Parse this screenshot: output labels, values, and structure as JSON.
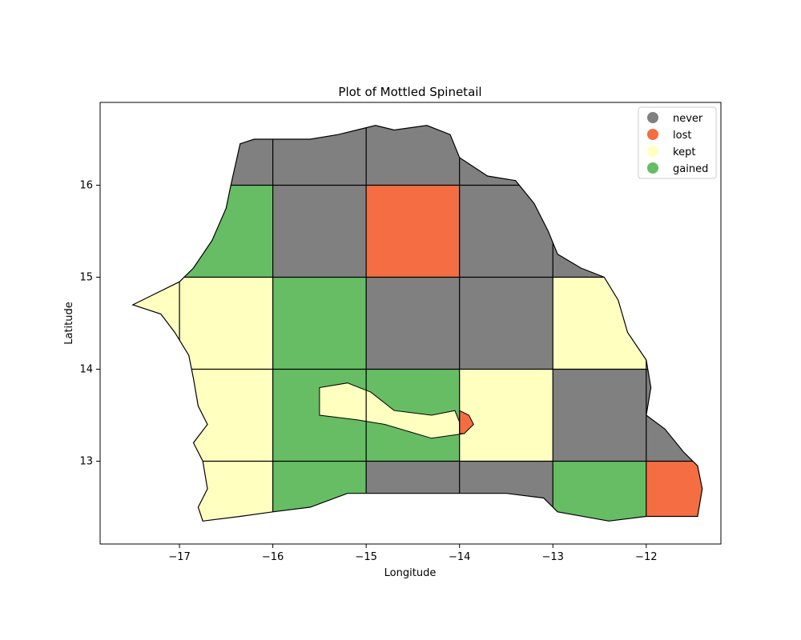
{
  "title": "Plot of Mottled Spinetail",
  "xlabel": "Longitude",
  "ylabel": "Latitude",
  "chart_data": {
    "type": "map",
    "xlim": [
      -17.85,
      -11.2
    ],
    "ylim": [
      12.1,
      16.9
    ],
    "x_ticks": [
      -17,
      -16,
      -15,
      -14,
      -13,
      -12
    ],
    "x_tick_labels": [
      "−17",
      "−16",
      "−15",
      "−14",
      "−13",
      "−12"
    ],
    "y_ticks": [
      13,
      14,
      15,
      16
    ],
    "y_tick_labels": [
      "13",
      "14",
      "15",
      "16"
    ],
    "legend_position": "top-right",
    "categories": [
      {
        "key": "never",
        "label": "never",
        "color": "#808080"
      },
      {
        "key": "lost",
        "label": "lost",
        "color": "#f46d43"
      },
      {
        "key": "kept",
        "label": "kept",
        "color": "#ffffbf"
      },
      {
        "key": "gained",
        "label": "gained",
        "color": "#66bd63"
      }
    ],
    "cells": [
      {
        "lon": -16.5,
        "lat": 16.5,
        "status": "never"
      },
      {
        "lon": -15.5,
        "lat": 16.5,
        "status": "never"
      },
      {
        "lon": -14.5,
        "lat": 16.5,
        "status": "never"
      },
      {
        "lon": -13.5,
        "lat": 16.5,
        "status": "never"
      },
      {
        "lon": -16.5,
        "lat": 15.5,
        "status": "gained"
      },
      {
        "lon": -15.5,
        "lat": 15.5,
        "status": "never"
      },
      {
        "lon": -14.5,
        "lat": 15.5,
        "status": "lost"
      },
      {
        "lon": -13.5,
        "lat": 15.5,
        "status": "never"
      },
      {
        "lon": -12.5,
        "lat": 15.5,
        "status": "never"
      },
      {
        "lon": -17.5,
        "lat": 14.5,
        "status": "kept"
      },
      {
        "lon": -16.5,
        "lat": 14.5,
        "status": "kept"
      },
      {
        "lon": -15.5,
        "lat": 14.5,
        "status": "gained"
      },
      {
        "lon": -14.5,
        "lat": 14.5,
        "status": "never"
      },
      {
        "lon": -13.5,
        "lat": 14.5,
        "status": "never"
      },
      {
        "lon": -12.5,
        "lat": 14.5,
        "status": "kept"
      },
      {
        "lon": -16.5,
        "lat": 13.5,
        "status": "kept"
      },
      {
        "lon": -15.5,
        "lat": 13.5,
        "status": "gained"
      },
      {
        "lon": -14.5,
        "lat": 13.5,
        "status": "gained"
      },
      {
        "lon": -13.5,
        "lat": 13.5,
        "status": "kept"
      },
      {
        "lon": -12.5,
        "lat": 13.5,
        "status": "never"
      },
      {
        "lon": -11.5,
        "lat": 13.5,
        "status": "never"
      },
      {
        "lon": -16.5,
        "lat": 12.5,
        "status": "kept"
      },
      {
        "lon": -15.5,
        "lat": 12.5,
        "status": "gained"
      },
      {
        "lon": -14.5,
        "lat": 12.5,
        "status": "never"
      },
      {
        "lon": -13.5,
        "lat": 12.5,
        "status": "never"
      },
      {
        "lon": -12.5,
        "lat": 12.5,
        "status": "gained"
      },
      {
        "lon": -11.5,
        "lat": 12.5,
        "status": "lost"
      }
    ],
    "special_regions": [
      {
        "name": "Gambia river zone",
        "status": "kept"
      },
      {
        "name": "Eastern notch near -13.9",
        "status": "lost"
      }
    ]
  }
}
